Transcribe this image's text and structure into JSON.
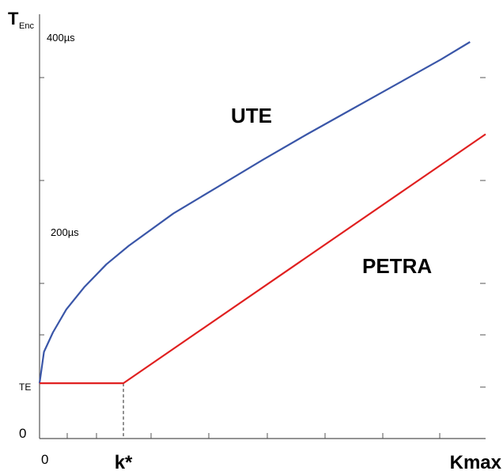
{
  "chart_data": {
    "type": "line",
    "ylabel_main": "T",
    "ylabel_sub": "Enc",
    "xlabel": "Kmax",
    "ylim": [
      0,
      460
    ],
    "xlim": [
      0,
      1
    ],
    "y_tick_labels": [
      {
        "value": 400,
        "text": "400µs"
      },
      {
        "value": 200,
        "text": "200µs"
      },
      {
        "value": 60,
        "text": "TE"
      },
      {
        "value": 0,
        "text": "0"
      }
    ],
    "x_tick_labels": [
      {
        "value": 0,
        "text": "0"
      },
      {
        "value": 0.188,
        "text": "k*"
      }
    ],
    "kstar": 0.188,
    "te_value": 60,
    "grid": false,
    "series": [
      {
        "name": "UTE",
        "color": "#3a56a8",
        "x": [
          0,
          0.01,
          0.03,
          0.06,
          0.1,
          0.15,
          0.2,
          0.3,
          0.4,
          0.5,
          0.6,
          0.7,
          0.8,
          0.9,
          0.965
        ],
        "y": [
          60,
          94,
          115,
          140,
          164,
          189,
          209,
          244,
          273,
          302,
          330,
          357,
          384,
          411,
          430
        ]
      },
      {
        "name": "PETRA",
        "color": "#e02020",
        "x": [
          0,
          0.188,
          1
        ],
        "y": [
          60,
          60,
          330
        ]
      }
    ]
  }
}
